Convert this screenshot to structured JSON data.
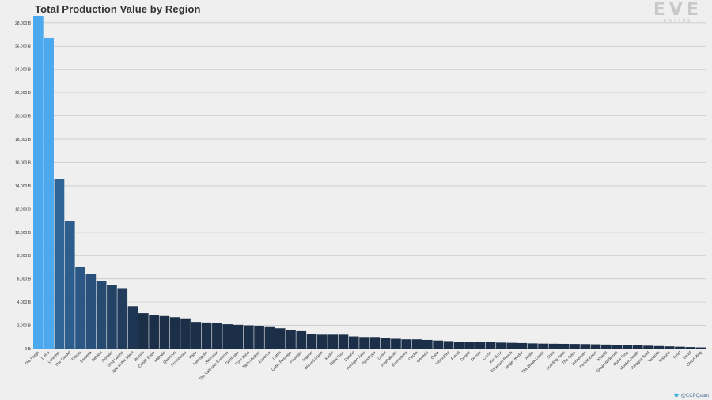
{
  "chart_data": {
    "type": "bar",
    "title": "Total Production Value by Region",
    "xlabel": "",
    "ylabel": "",
    "ylim": [
      0,
      28600
    ],
    "yticks": [
      "0 B",
      "2,000 B",
      "4,000 B",
      "6,000 B",
      "8,000 B",
      "10,000 B",
      "12,000 B",
      "14,000 B",
      "16,000 B",
      "18,000 B",
      "20,000 B",
      "22,000 B",
      "24,000 B",
      "26,000 B",
      "28,000 B"
    ],
    "ytick_values": [
      0,
      2000,
      4000,
      6000,
      8000,
      10000,
      12000,
      14000,
      16000,
      18000,
      20000,
      22000,
      24000,
      26000,
      28000
    ],
    "grid": true,
    "categories": [
      "The Forge",
      "Delve",
      "Lonetrek",
      "The Citadel",
      "Tribute",
      "Esoteria",
      "Deklein",
      "Domain",
      "Sinq Laison",
      "Vale of the Silent",
      "Branch",
      "Cobalt Edge",
      "Malpais",
      "Querious",
      "Providence",
      "Fade",
      "Metropolis",
      "Heimatar",
      "The Kalevala Expanse",
      "Geminate",
      "Pure Blind",
      "Tash-Murkon",
      "Essence",
      "Catch",
      "Outer Passage",
      "Fountain",
      "Impass",
      "Wicked Creek",
      "Kador",
      "Black Rise",
      "Detorid",
      "Perrigen Falls",
      "Syndicate",
      "Omist",
      "Feythabolis",
      "Everyshore",
      "Cache",
      "Genesis",
      "Oasa",
      "Insmother",
      "Placid",
      "Derelik",
      "Devoid",
      "Curse",
      "Kor-Azor",
      "Etherium Reach",
      "Verge Vendor",
      "Aridia",
      "The Bleak Lands",
      "Stain",
      "Scalding Pass",
      "The Spire",
      "Immensea",
      "Period Basis",
      "Khanid",
      "Great Wildlands",
      "Outer Ring",
      "Molden Heath",
      "Paragon Soul",
      "Tenerifis",
      "Solitude",
      "Tenal",
      "Venal",
      "Cloud Ring"
    ],
    "values": [
      28600,
      26700,
      14600,
      11000,
      7000,
      6400,
      5800,
      5450,
      5200,
      3650,
      3050,
      2900,
      2800,
      2700,
      2600,
      2300,
      2250,
      2200,
      2100,
      2050,
      2000,
      1950,
      1850,
      1750,
      1600,
      1500,
      1250,
      1200,
      1200,
      1200,
      1050,
      1000,
      1000,
      900,
      850,
      800,
      800,
      750,
      700,
      650,
      600,
      580,
      560,
      550,
      520,
      500,
      480,
      450,
      430,
      420,
      410,
      400,
      390,
      370,
      350,
      320,
      300,
      280,
      250,
      220,
      190,
      160,
      130,
      100
    ],
    "highlight_count": 2,
    "colors": {
      "highlight": "#4da9ee",
      "bar_gradient_start": "#2f6497",
      "bar_gradient_end": "#1c2f49",
      "grid": "#c8c8c8",
      "axis": "#777777",
      "text": "#333333",
      "background": "#efefef"
    }
  },
  "logo": {
    "main": "EVE",
    "sub": "ONLINE"
  },
  "credit": "@CCPQuant"
}
